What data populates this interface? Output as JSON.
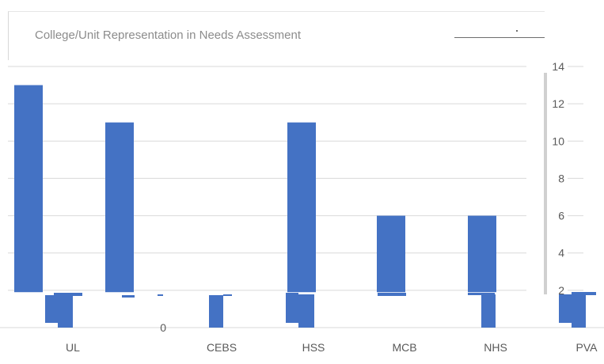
{
  "chart_data": {
    "type": "bar",
    "title": "College/Unit Representation in Needs Assessment",
    "categories": [
      "UL",
      "",
      "CEBS",
      "HSS",
      "MCB",
      "NHS",
      "PVA"
    ],
    "values": [
      13,
      11,
      0,
      11,
      6,
      6,
      0
    ],
    "ylim": [
      0,
      14
    ],
    "yticks": [
      0,
      2,
      4,
      6,
      8,
      10,
      12,
      14
    ],
    "xlabel": "",
    "ylabel": "",
    "grid": true,
    "legend": "none",
    "colors": {
      "bar": "#4472c4",
      "grid": "#d9d9d9",
      "text": "#595959"
    }
  }
}
